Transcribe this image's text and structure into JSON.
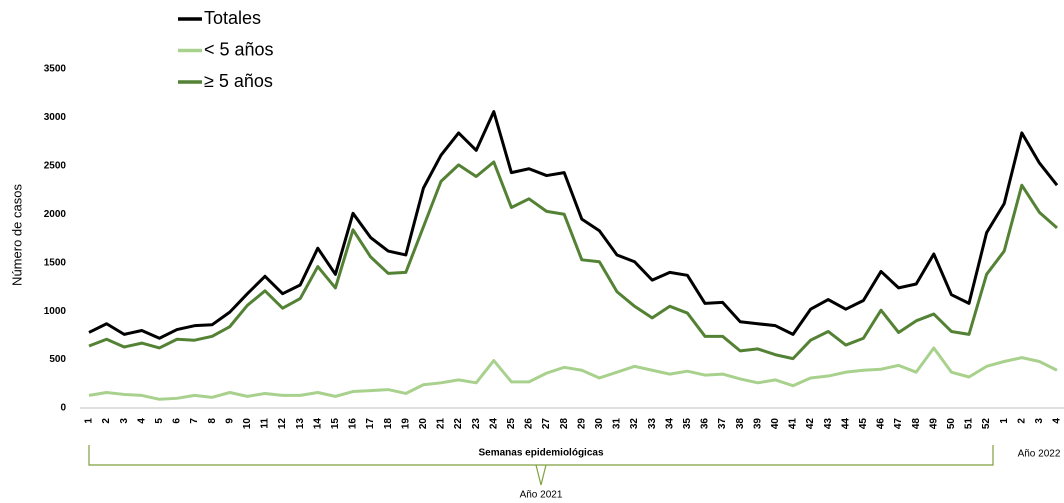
{
  "chart_data": {
    "type": "line",
    "y_label": "Número de casos",
    "x_label": "Semanas epidemiológicas",
    "annotations": [
      "Año 2021",
      "Año 2022"
    ],
    "categories": [
      "1",
      "2",
      "3",
      "4",
      "5",
      "6",
      "7",
      "8",
      "9",
      "10",
      "11",
      "12",
      "13",
      "14",
      "15",
      "16",
      "17",
      "18",
      "19",
      "20",
      "21",
      "22",
      "23",
      "24",
      "25",
      "26",
      "27",
      "28",
      "29",
      "30",
      "31",
      "32",
      "33",
      "34",
      "35",
      "36",
      "37",
      "38",
      "39",
      "40",
      "41",
      "42",
      "43",
      "44",
      "45",
      "46",
      "47",
      "48",
      "49",
      "50",
      "51",
      "52",
      "1",
      "2",
      "3",
      "4"
    ],
    "series": [
      {
        "name": "Totales",
        "color": "#000000",
        "values": [
          780,
          870,
          760,
          800,
          720,
          810,
          850,
          860,
          990,
          1180,
          1360,
          1180,
          1270,
          1650,
          1380,
          2010,
          1760,
          1620,
          1580,
          2270,
          2610,
          2840,
          2660,
          3060,
          2430,
          2470,
          2400,
          2430,
          1950,
          1830,
          1580,
          1510,
          1320,
          1400,
          1370,
          1080,
          1090,
          890,
          870,
          850,
          760,
          1020,
          1120,
          1020,
          1110,
          1410,
          1240,
          1280,
          1590,
          1170,
          1080,
          1810,
          2110,
          2840,
          2530,
          2300
        ]
      },
      {
        "name": "< 5 años",
        "color": "#a9d18e",
        "values": [
          130,
          160,
          140,
          130,
          90,
          100,
          130,
          110,
          160,
          120,
          150,
          130,
          130,
          160,
          120,
          170,
          180,
          190,
          150,
          240,
          260,
          290,
          260,
          490,
          270,
          270,
          360,
          420,
          390,
          310,
          370,
          430,
          390,
          350,
          380,
          340,
          350,
          300,
          260,
          290,
          230,
          310,
          330,
          370,
          390,
          400,
          440,
          370,
          620,
          370,
          320,
          430,
          480,
          520,
          480,
          390
        ]
      },
      {
        "name": "≥ 5 años",
        "color": "#548235",
        "values": [
          640,
          710,
          630,
          670,
          620,
          710,
          700,
          740,
          840,
          1060,
          1210,
          1030,
          1130,
          1460,
          1240,
          1840,
          1560,
          1390,
          1400,
          1870,
          2340,
          2510,
          2390,
          2540,
          2070,
          2160,
          2030,
          2000,
          1530,
          1510,
          1200,
          1050,
          930,
          1050,
          980,
          740,
          740,
          590,
          610,
          550,
          510,
          700,
          790,
          650,
          720,
          1010,
          780,
          900,
          970,
          790,
          760,
          1380,
          1620,
          2300,
          2020,
          1860
        ]
      }
    ],
    "ylim": [
      0,
      3500
    ],
    "yticks": [
      0,
      500,
      1000,
      1500,
      2000,
      2500,
      3000,
      3500
    ],
    "grid": false,
    "legend": "top-left"
  }
}
